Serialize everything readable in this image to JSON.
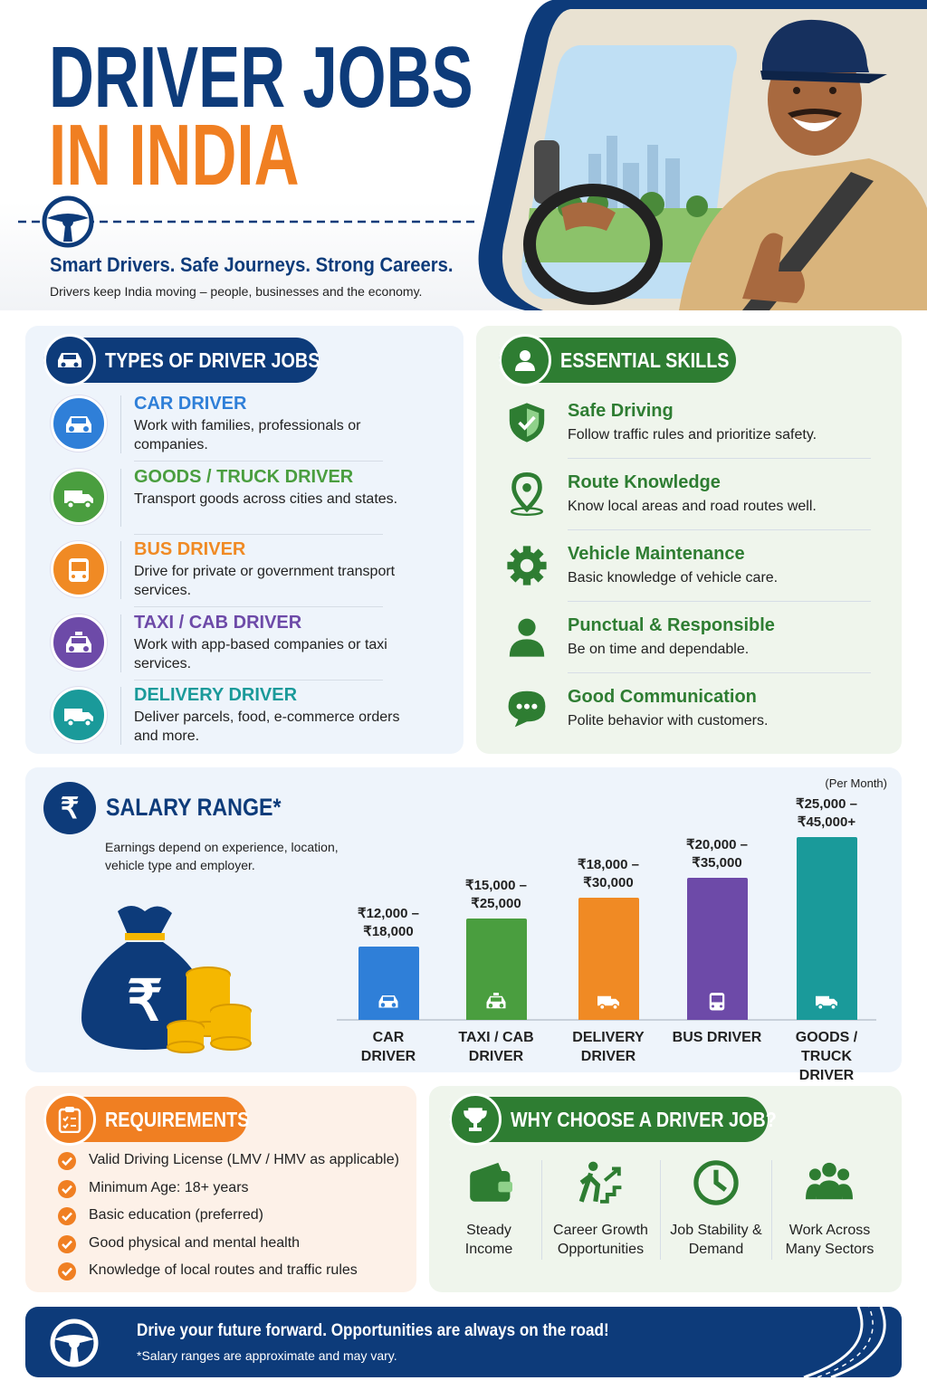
{
  "header": {
    "title_line1": "DRIVER JOBS",
    "title_line2": "IN INDIA",
    "tagline": "Smart Drivers. Safe Journeys. Strong Careers.",
    "subtitle": "Drivers keep India moving – people, businesses and the economy."
  },
  "job_types": {
    "heading": "TYPES OF DRIVER JOBS",
    "items": [
      {
        "title": "CAR DRIVER",
        "text": "Work with families, professionals or companies.",
        "color": "#2f7fd8"
      },
      {
        "title": "GOODS / TRUCK DRIVER",
        "text": "Transport goods across cities and states.",
        "color": "#4a9e3f"
      },
      {
        "title": "BUS DRIVER",
        "text": "Drive for private or government transport services.",
        "color": "#f08a24"
      },
      {
        "title": "TAXI / CAB DRIVER",
        "text": "Work with app-based companies or taxi services.",
        "color": "#6d4aa8"
      },
      {
        "title": "DELIVERY DRIVER",
        "text": "Deliver parcels, food, e-commerce orders and more.",
        "color": "#1a9a9a"
      }
    ]
  },
  "skills": {
    "heading": "ESSENTIAL SKILLS",
    "items": [
      {
        "title": "Safe Driving",
        "text": "Follow traffic rules and prioritize safety."
      },
      {
        "title": "Route Knowledge",
        "text": "Know local areas and road routes well."
      },
      {
        "title": "Vehicle Maintenance",
        "text": "Basic knowledge of vehicle care."
      },
      {
        "title": "Punctual & Responsible",
        "text": "Be on time and dependable."
      },
      {
        "title": "Good Communication",
        "text": "Polite behavior with customers."
      }
    ]
  },
  "chart_data": {
    "type": "bar",
    "title": "SALARY RANGE*",
    "subtitle": "Earnings depend on experience, location, vehicle type and employer.",
    "note": "(Per Month)",
    "categories": [
      "CAR DRIVER",
      "TAXI / CAB DRIVER",
      "DELIVERY DRIVER",
      "BUS DRIVER",
      "GOODS / TRUCK DRIVER"
    ],
    "low": [
      12000,
      15000,
      18000,
      20000,
      25000
    ],
    "values": [
      18000,
      25000,
      30000,
      35000,
      45000
    ],
    "value_labels": [
      "₹12,000 – ₹18,000",
      "₹15,000 – ₹25,000",
      "₹18,000 – ₹30,000",
      "₹20,000 – ₹35,000",
      "₹25,000 – ₹45,000+"
    ],
    "colors": [
      "#2f7fd8",
      "#4a9e3f",
      "#f08a24",
      "#6d4aa8",
      "#1a9a9a"
    ]
  },
  "requirements": {
    "heading": "REQUIREMENTS",
    "items": [
      "Valid Driving License (LMV / HMV as applicable)",
      "Minimum Age: 18+ years",
      "Basic education (preferred)",
      "Good physical and mental health",
      "Knowledge of local routes and traffic rules"
    ]
  },
  "why": {
    "heading": "WHY CHOOSE A DRIVER JOB?",
    "items": [
      "Steady Income",
      "Career Growth Opportunities",
      "Job Stability & Demand",
      "Work Across Many Sectors"
    ]
  },
  "footer": {
    "headline": "Drive your future forward. Opportunities are always on the road!",
    "note": "*Salary ranges are approximate and may vary."
  }
}
